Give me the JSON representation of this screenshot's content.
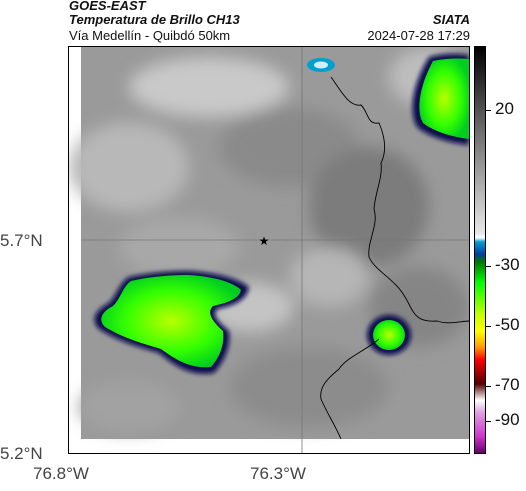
{
  "header": {
    "title": "GOES-EAST",
    "subtitle": "Temperatura de Brillo CH13",
    "org": "SIATA",
    "region": "Vía Medellín - Quibdó 50km",
    "timestamp": "2024-07-28 17:29"
  },
  "map": {
    "lat_labels": [
      "5.7°N",
      "5.2°N"
    ],
    "lon_labels": [
      "76.8°W",
      "76.3°W"
    ],
    "marker": "star-marker"
  },
  "colorbar": {
    "labels": [
      "20",
      "-30",
      "-50",
      "-70",
      "-90"
    ],
    "colors": [
      "#000000",
      "#ffffff",
      "#00a0d0",
      "#00ff00",
      "#ffff00",
      "#ff0000",
      "#550000",
      "#cc33cc"
    ]
  }
}
